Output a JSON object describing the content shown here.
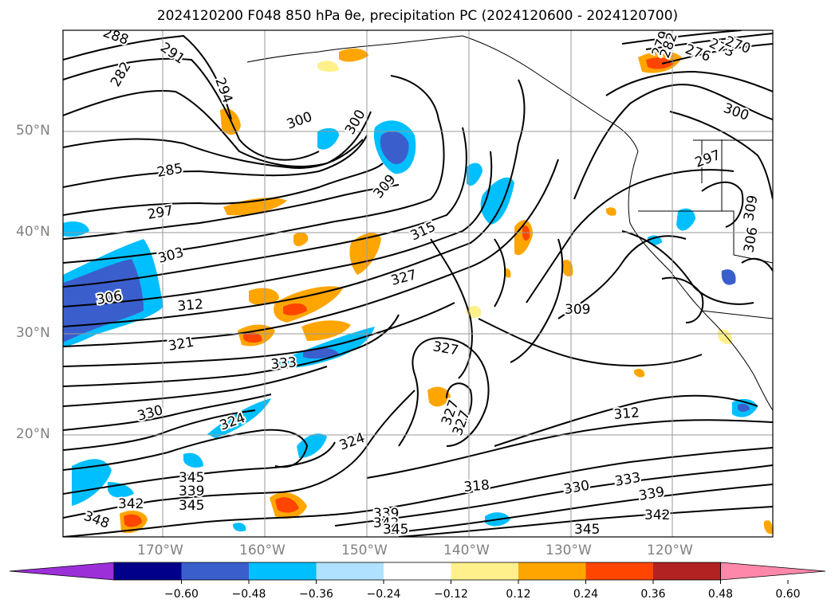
{
  "title": "2024120200 F048 850 hPa θe, precipitation PC (2024120600 - 2024120700)",
  "map": {
    "lat_labels": [
      "50°N",
      "40°N",
      "30°N",
      "20°N"
    ],
    "lon_labels": [
      "170°W",
      "160°W",
      "150°W",
      "140°W",
      "130°W",
      "120°W"
    ],
    "contour_labels": [
      "288",
      "291",
      "282",
      "294",
      "300",
      "300",
      "285",
      "309",
      "297",
      "315",
      "303",
      "327",
      "306",
      "312",
      "309",
      "321",
      "327",
      "333",
      "330",
      "324",
      "324",
      "327",
      "327",
      "312",
      "318",
      "330",
      "333",
      "339",
      "342",
      "345",
      "339",
      "342",
      "345",
      "339",
      "342",
      "345",
      "348",
      "345",
      "297",
      "306",
      "309",
      "300",
      "273",
      "276",
      "270",
      "279",
      "282"
    ]
  },
  "colorbar": {
    "ticks": [
      "−0.60",
      "−0.48",
      "−0.36",
      "−0.24",
      "−0.12",
      "0.12",
      "0.24",
      "0.36",
      "0.48",
      "0.60"
    ],
    "colors": [
      "#9b30d8",
      "#00008b",
      "#3a5fcd",
      "#00bfff",
      "#b0e2ff",
      "#ffffff",
      "#fff08c",
      "#ffa500",
      "#ff4500",
      "#b22222",
      "#ff88aa"
    ]
  }
}
